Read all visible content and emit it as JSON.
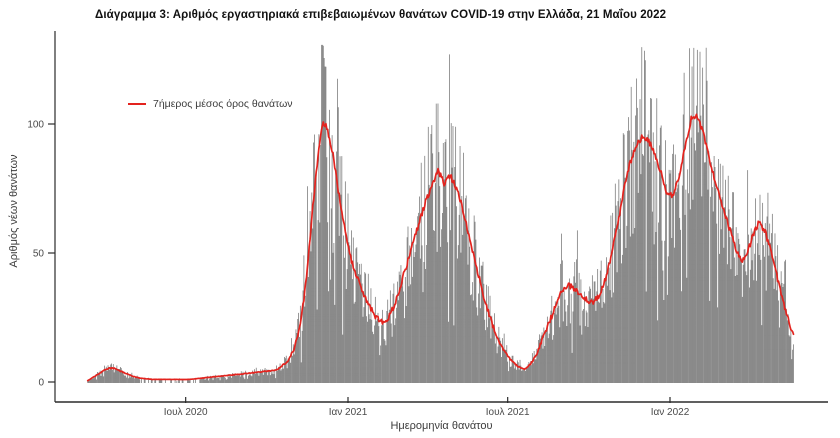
{
  "title": "Διάγραμμα 3: Αριθμός εργαστηριακά επιβεβαιωμένων θανάτων COVID-19 στην Ελλάδα, 21 Μαΐου 2022",
  "legend": {
    "label": "7ήμερος μέσος όρος θανάτων"
  },
  "axes": {
    "y_label": "Αριθμός νέων θανάτων",
    "x_label": "Ημερομηνία θανάτου",
    "y_ticks": [
      0,
      50,
      100
    ],
    "x_ticks": [
      {
        "label": "Ιουλ 2020",
        "date": "2020-07-01"
      },
      {
        "label": "Ιαν 2021",
        "date": "2021-01-01"
      },
      {
        "label": "Ιουλ 2021",
        "date": "2021-07-01"
      },
      {
        "label": "Ιαν 2022",
        "date": "2022-01-01"
      }
    ]
  },
  "colors": {
    "bars": "#7f7f7f",
    "line": "#e3231e",
    "axis": "#2b2b2b",
    "tick_text": "#4a4a4a"
  },
  "chart_data": {
    "type": "bar",
    "title": "Αριθμός εργαστηριακά επιβεβαιωμένων θανάτων COVID-19 στην Ελλάδα, 21 Μαΐου 2022",
    "xlabel": "Ημερομηνία θανάτου",
    "ylabel": "Αριθμός νέων θανάτων",
    "ylim": [
      0,
      135
    ],
    "x_start": "2020-03-12",
    "x_end": "2022-05-21",
    "bars": "daily laboratory-confirmed COVID-19 deaths (gray bars, one per day, values fluctuate around the 7-day average; tallest bars ≈121 in Dec 2020 and ≈130 in Jan 2022)",
    "bar_noise": {
      "seed": 11,
      "spread": 0.38,
      "spike_prob": 0.06,
      "spike_size": 0.28,
      "drop_prob": 0.07,
      "max_value": 131
    },
    "series": [
      {
        "name": "7ήμερος μέσος όρος θανάτων",
        "points": [
          [
            "2020-03-12",
            0.5
          ],
          [
            "2020-03-19",
            2
          ],
          [
            "2020-03-26",
            3.5
          ],
          [
            "2020-04-02",
            5
          ],
          [
            "2020-04-09",
            5.5
          ],
          [
            "2020-04-16",
            4.5
          ],
          [
            "2020-04-23",
            3.5
          ],
          [
            "2020-04-30",
            2.5
          ],
          [
            "2020-05-10",
            1.5
          ],
          [
            "2020-05-24",
            1
          ],
          [
            "2020-06-07",
            1
          ],
          [
            "2020-06-21",
            1
          ],
          [
            "2020-07-05",
            1
          ],
          [
            "2020-07-19",
            1.5
          ],
          [
            "2020-08-02",
            2
          ],
          [
            "2020-08-16",
            2.5
          ],
          [
            "2020-08-30",
            3
          ],
          [
            "2020-09-13",
            3.5
          ],
          [
            "2020-09-27",
            4
          ],
          [
            "2020-10-11",
            4.5
          ],
          [
            "2020-10-25",
            8
          ],
          [
            "2020-11-01",
            13
          ],
          [
            "2020-11-08",
            22
          ],
          [
            "2020-11-15",
            40
          ],
          [
            "2020-11-22",
            68
          ],
          [
            "2020-11-29",
            90
          ],
          [
            "2020-12-03",
            100
          ],
          [
            "2020-12-08",
            99
          ],
          [
            "2020-12-15",
            88
          ],
          [
            "2020-12-22",
            72
          ],
          [
            "2020-12-29",
            58
          ],
          [
            "2021-01-05",
            47
          ],
          [
            "2021-01-12",
            40
          ],
          [
            "2021-01-19",
            34
          ],
          [
            "2021-01-26",
            29
          ],
          [
            "2021-02-02",
            25
          ],
          [
            "2021-02-09",
            23
          ],
          [
            "2021-02-16",
            25
          ],
          [
            "2021-02-23",
            30
          ],
          [
            "2021-03-02",
            38
          ],
          [
            "2021-03-09",
            46
          ],
          [
            "2021-03-16",
            54
          ],
          [
            "2021-03-23",
            62
          ],
          [
            "2021-03-30",
            70
          ],
          [
            "2021-04-06",
            76
          ],
          [
            "2021-04-13",
            82
          ],
          [
            "2021-04-20",
            77
          ],
          [
            "2021-04-27",
            80
          ],
          [
            "2021-05-04",
            75
          ],
          [
            "2021-05-11",
            67
          ],
          [
            "2021-05-18",
            57
          ],
          [
            "2021-05-25",
            47
          ],
          [
            "2021-06-01",
            37
          ],
          [
            "2021-06-08",
            28
          ],
          [
            "2021-06-15",
            21
          ],
          [
            "2021-06-22",
            15
          ],
          [
            "2021-06-29",
            11
          ],
          [
            "2021-07-06",
            8
          ],
          [
            "2021-07-13",
            6
          ],
          [
            "2021-07-20",
            5
          ],
          [
            "2021-07-27",
            7
          ],
          [
            "2021-08-03",
            11
          ],
          [
            "2021-08-10",
            17
          ],
          [
            "2021-08-17",
            23
          ],
          [
            "2021-08-24",
            29
          ],
          [
            "2021-08-31",
            35
          ],
          [
            "2021-09-07",
            38
          ],
          [
            "2021-09-14",
            36
          ],
          [
            "2021-09-21",
            34
          ],
          [
            "2021-09-28",
            32
          ],
          [
            "2021-10-05",
            31
          ],
          [
            "2021-10-12",
            33
          ],
          [
            "2021-10-19",
            39
          ],
          [
            "2021-10-26",
            48
          ],
          [
            "2021-11-02",
            60
          ],
          [
            "2021-11-09",
            73
          ],
          [
            "2021-11-16",
            84
          ],
          [
            "2021-11-23",
            91
          ],
          [
            "2021-11-30",
            95
          ],
          [
            "2021-12-07",
            94
          ],
          [
            "2021-12-14",
            89
          ],
          [
            "2021-12-21",
            82
          ],
          [
            "2021-12-28",
            74
          ],
          [
            "2022-01-04",
            72
          ],
          [
            "2022-01-11",
            79
          ],
          [
            "2022-01-18",
            91
          ],
          [
            "2022-01-25",
            102
          ],
          [
            "2022-02-01",
            103
          ],
          [
            "2022-02-08",
            96
          ],
          [
            "2022-02-15",
            86
          ],
          [
            "2022-02-22",
            77
          ],
          [
            "2022-03-01",
            69
          ],
          [
            "2022-03-08",
            61
          ],
          [
            "2022-03-15",
            53
          ],
          [
            "2022-03-22",
            47
          ],
          [
            "2022-03-29",
            49
          ],
          [
            "2022-04-05",
            57
          ],
          [
            "2022-04-12",
            62
          ],
          [
            "2022-04-19",
            58
          ],
          [
            "2022-04-26",
            50
          ],
          [
            "2022-05-03",
            40
          ],
          [
            "2022-05-10",
            30
          ],
          [
            "2022-05-17",
            22
          ],
          [
            "2022-05-21",
            18
          ]
        ]
      }
    ]
  }
}
